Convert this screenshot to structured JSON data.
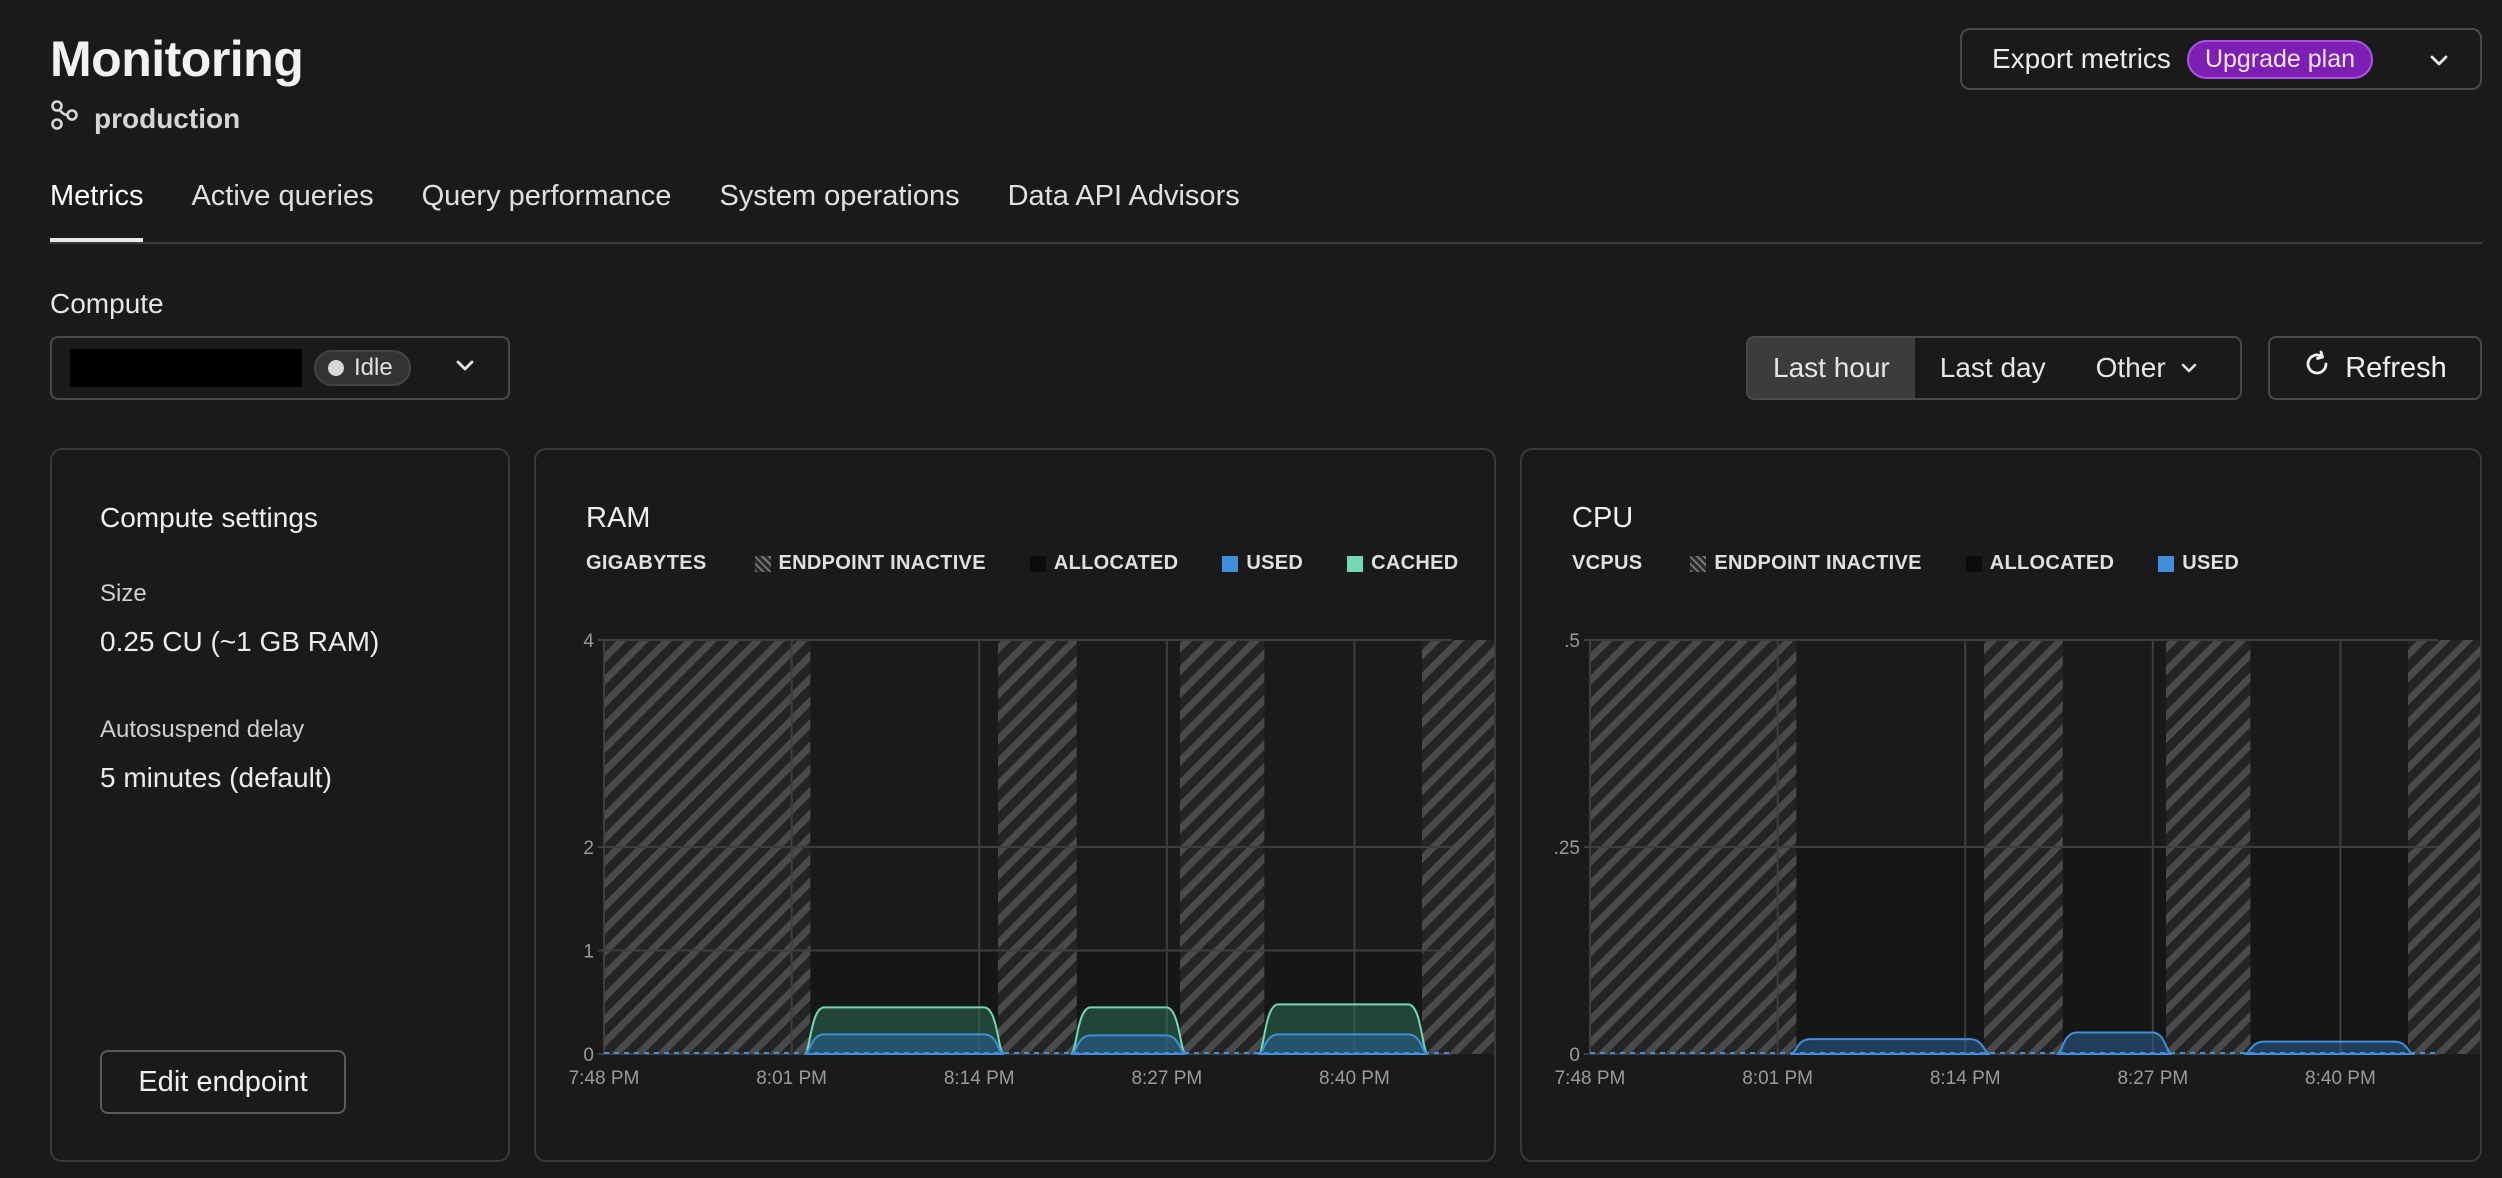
{
  "page": {
    "title": "Monitoring",
    "branch": "production",
    "export": {
      "label": "Export metrics",
      "badge": "Upgrade plan"
    }
  },
  "tabs": [
    {
      "label": "Metrics",
      "active": true
    },
    {
      "label": "Active queries",
      "active": false
    },
    {
      "label": "Query performance",
      "active": false
    },
    {
      "label": "System operations",
      "active": false
    },
    {
      "label": "Data API Advisors",
      "active": false
    }
  ],
  "compute": {
    "label": "Compute",
    "status": "Idle",
    "time_range": {
      "options": [
        "Last hour",
        "Last day",
        "Other"
      ],
      "selected": "Last hour"
    },
    "refresh_label": "Refresh"
  },
  "settings": {
    "title": "Compute settings",
    "size_label": "Size",
    "size_value": "0.25 CU (~1 GB RAM)",
    "autosuspend_label": "Autosuspend delay",
    "autosuspend_value": "5 minutes (default)",
    "edit_label": "Edit endpoint"
  },
  "colors": {
    "accent_badge": "#7d1fb3",
    "used": "#3f8fdc",
    "cached": "#74d9b0",
    "inactive_hatch": "#777777"
  },
  "chart_data": [
    {
      "type": "area",
      "title": "RAM",
      "unit_label": "GIGABYTES",
      "legend": [
        "ENDPOINT INACTIVE",
        "ALLOCATED",
        "USED",
        "CACHED"
      ],
      "x_ticks": [
        "7:48 PM",
        "8:01 PM",
        "8:14 PM",
        "8:27 PM",
        "8:40 PM"
      ],
      "y_ticks": [
        "0",
        "1",
        "2",
        "4"
      ],
      "ylim": [
        0,
        4
      ],
      "inactive_periods": [
        [
          0,
          1.1
        ],
        [
          2.1,
          2.52
        ],
        [
          3.07,
          3.52
        ],
        [
          4.36,
          5.0
        ]
      ],
      "series": [
        {
          "name": "ALLOCATED",
          "values": [
            [
              1.1,
              1.0
            ],
            [
              2.1,
              1.0
            ],
            [
              2.52,
              1.0
            ],
            [
              3.07,
              1.0
            ],
            [
              3.52,
              1.0
            ],
            [
              4.36,
              1.0
            ]
          ]
        },
        {
          "name": "CACHED",
          "segments": [
            [
              1.1,
              2.1,
              0.45
            ],
            [
              2.52,
              3.07,
              0.45
            ],
            [
              3.52,
              4.36,
              0.48
            ]
          ]
        },
        {
          "name": "USED",
          "segments": [
            [
              1.1,
              2.1,
              0.19
            ],
            [
              2.52,
              3.07,
              0.18
            ],
            [
              3.52,
              4.36,
              0.19
            ]
          ]
        }
      ]
    },
    {
      "type": "area",
      "title": "CPU",
      "unit_label": "VCPUS",
      "legend": [
        "ENDPOINT INACTIVE",
        "ALLOCATED",
        "USED"
      ],
      "x_ticks": [
        "7:48 PM",
        "8:01 PM",
        "8:14 PM",
        "8:27 PM",
        "8:40 PM"
      ],
      "y_ticks": [
        "0",
        ".25",
        ".5"
      ],
      "ylim": [
        0,
        0.5
      ],
      "inactive_periods": [
        [
          0,
          1.1
        ],
        [
          2.1,
          2.52
        ],
        [
          3.07,
          3.52
        ],
        [
          4.36,
          5.0
        ]
      ],
      "series": [
        {
          "name": "ALLOCATED",
          "segments": [
            [
              1.1,
              2.1,
              0.25
            ],
            [
              2.52,
              3.07,
              0.25
            ],
            [
              3.52,
              4.36,
              0.25
            ]
          ]
        },
        {
          "name": "USED",
          "segments": [
            [
              1.1,
              2.1,
              0.018
            ],
            [
              2.52,
              3.07,
              0.026
            ],
            [
              3.52,
              4.36,
              0.015
            ]
          ]
        }
      ]
    }
  ]
}
